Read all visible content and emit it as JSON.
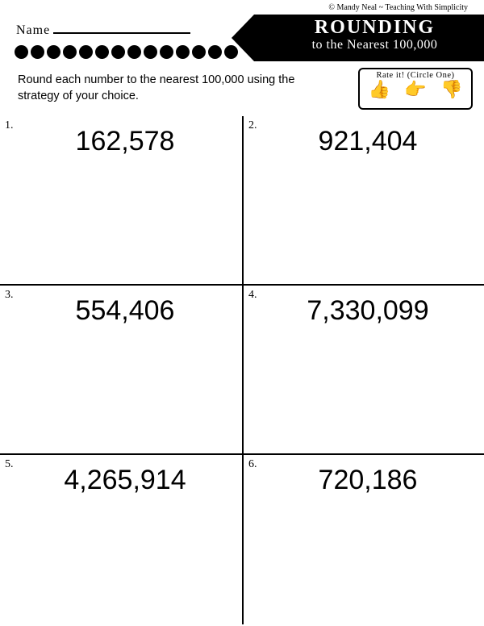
{
  "copyright": "© Mandy Neal ~ Teaching With Simplicity",
  "name_label": "Name",
  "banner": {
    "title": "ROUNDING",
    "subtitle": "to the Nearest 100,000"
  },
  "dot_count": 14,
  "instructions": "Round each number to the nearest 100,000 using the strategy of your choice.",
  "rate": {
    "label": "Rate it! (Circle One)",
    "icons": [
      "👍",
      "👉",
      "👎"
    ]
  },
  "problems": [
    {
      "n": "1.",
      "value": "162,578"
    },
    {
      "n": "2.",
      "value": "921,404"
    },
    {
      "n": "3.",
      "value": "554,406"
    },
    {
      "n": "4.",
      "value": "7,330,099"
    },
    {
      "n": "5.",
      "value": "4,265,914"
    },
    {
      "n": "6.",
      "value": "720,186"
    }
  ],
  "colors": {
    "fg": "#000000",
    "bg": "#ffffff"
  }
}
